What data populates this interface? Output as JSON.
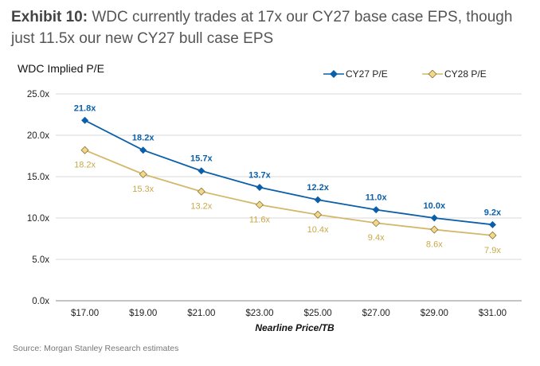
{
  "header": {
    "exhibit": "Exhibit 10:",
    "title": "WDC currently trades at 17x our CY27 base case EPS, though just 11.5x our new CY27 bull case EPS"
  },
  "source": "Source: Morgan Stanley Research estimates",
  "chart_data": {
    "type": "line",
    "title": "WDC Implied P/E",
    "xlabel": "Nearline Price/TB",
    "ylabel": "",
    "categories": [
      "$17.00",
      "$19.00",
      "$21.00",
      "$23.00",
      "$25.00",
      "$27.00",
      "$29.00",
      "$31.00"
    ],
    "ylim": [
      0,
      25
    ],
    "yticks": [
      0,
      5,
      10,
      15,
      20,
      25
    ],
    "ytick_labels": [
      "0.0x",
      "5.0x",
      "10.0x",
      "15.0x",
      "20.0x",
      "25.0x"
    ],
    "grid": true,
    "legend_position": "top-right",
    "series": [
      {
        "name": "CY27 P/E",
        "color": "#0b5fa8",
        "values": [
          21.8,
          18.2,
          15.7,
          13.7,
          12.2,
          11.0,
          10.0,
          9.2
        ],
        "labels": [
          "21.8x",
          "18.2x",
          "15.7x",
          "13.7x",
          "12.2x",
          "11.0x",
          "10.0x",
          "9.2x"
        ]
      },
      {
        "name": "CY28 P/E",
        "color": "#d4b86a",
        "values": [
          18.2,
          15.3,
          13.2,
          11.6,
          10.4,
          9.4,
          8.6,
          7.9
        ],
        "labels": [
          "18.2x",
          "15.3x",
          "13.2x",
          "11.6x",
          "10.4x",
          "9.4x",
          "8.6x",
          "7.9x"
        ]
      }
    ]
  }
}
